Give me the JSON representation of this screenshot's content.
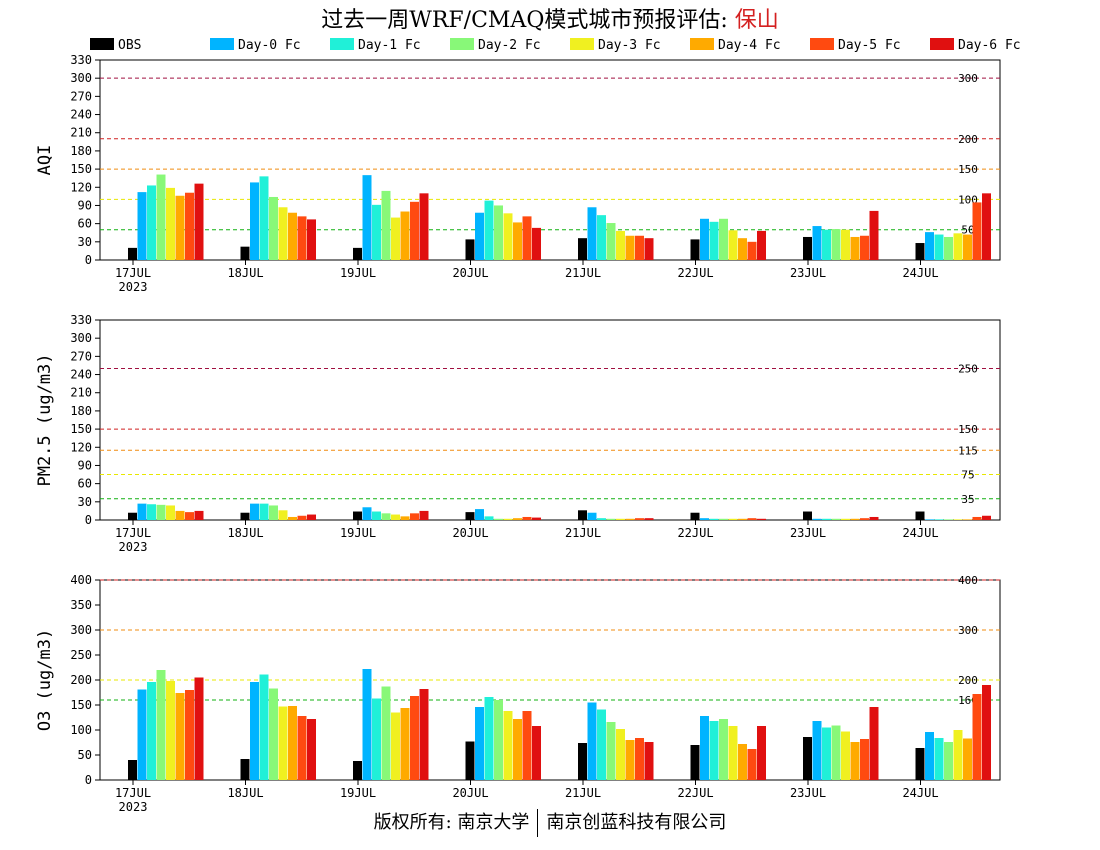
{
  "header": {
    "title_prefix": "过去一周WRF/CMAQ模式城市预报评估: ",
    "city": "保山"
  },
  "footer": {
    "left": "版权所有: 南京大学",
    "right": "南京创蓝科技有限公司"
  },
  "legend": [
    {
      "label": "OBS",
      "color": "#000000"
    },
    {
      "label": "Day-0 Fc",
      "color": "#00b4ff"
    },
    {
      "label": "Day-1 Fc",
      "color": "#20f0d8"
    },
    {
      "label": "Day-2 Fc",
      "color": "#88f878"
    },
    {
      "label": "Day-3 Fc",
      "color": "#f0f020"
    },
    {
      "label": "Day-4 Fc",
      "color": "#ffaa00"
    },
    {
      "label": "Day-5 Fc",
      "color": "#ff4a10"
    },
    {
      "label": "Day-6 Fc",
      "color": "#e01010"
    }
  ],
  "chart_data": [
    {
      "type": "bar",
      "ylabel": "AQI",
      "ylim": [
        0,
        330
      ],
      "yticks": [
        0,
        30,
        60,
        90,
        120,
        150,
        180,
        210,
        240,
        270,
        300,
        330
      ],
      "categories": [
        "17JUL",
        "18JUL",
        "19JUL",
        "20JUL",
        "21JUL",
        "22JUL",
        "23JUL",
        "24JUL"
      ],
      "year_label": "2023",
      "thresholds": [
        {
          "value": 50,
          "label": "50",
          "color": "#10b010"
        },
        {
          "value": 100,
          "label": "100",
          "color": "#e8e800"
        },
        {
          "value": 150,
          "label": "150",
          "color": "#f08c10"
        },
        {
          "value": 200,
          "label": "200",
          "color": "#d02020"
        },
        {
          "value": 300,
          "label": "300",
          "color": "#a01040"
        }
      ],
      "series": [
        {
          "name": "OBS",
          "values": [
            20,
            22,
            20,
            34,
            36,
            34,
            38,
            28
          ]
        },
        {
          "name": "Day-0 Fc",
          "values": [
            112,
            128,
            140,
            78,
            87,
            68,
            56,
            46
          ]
        },
        {
          "name": "Day-1 Fc",
          "values": [
            123,
            138,
            91,
            98,
            74,
            63,
            50,
            42
          ]
        },
        {
          "name": "Day-2 Fc",
          "values": [
            141,
            104,
            114,
            90,
            61,
            68,
            51,
            38
          ]
        },
        {
          "name": "Day-3 Fc",
          "values": [
            119,
            87,
            70,
            77,
            48,
            49,
            50,
            44
          ]
        },
        {
          "name": "Day-4 Fc",
          "values": [
            106,
            78,
            80,
            62,
            40,
            36,
            38,
            42
          ]
        },
        {
          "name": "Day-5 Fc",
          "values": [
            111,
            72,
            96,
            72,
            40,
            30,
            40,
            95
          ]
        },
        {
          "name": "Day-6 Fc",
          "values": [
            126,
            67,
            110,
            53,
            36,
            48,
            81,
            110
          ]
        }
      ]
    },
    {
      "type": "bar",
      "ylabel": "PM2.5 (ug/m3)",
      "ylim": [
        0,
        330
      ],
      "yticks": [
        0,
        30,
        60,
        90,
        120,
        150,
        180,
        210,
        240,
        270,
        300,
        330
      ],
      "categories": [
        "17JUL",
        "18JUL",
        "19JUL",
        "20JUL",
        "21JUL",
        "22JUL",
        "23JUL",
        "24JUL"
      ],
      "year_label": "2023",
      "thresholds": [
        {
          "value": 35,
          "label": "35",
          "color": "#10b010"
        },
        {
          "value": 75,
          "label": "75",
          "color": "#e8e800"
        },
        {
          "value": 115,
          "label": "115",
          "color": "#f08c10"
        },
        {
          "value": 150,
          "label": "150",
          "color": "#d02020"
        },
        {
          "value": 250,
          "label": "250",
          "color": "#a01040"
        }
      ],
      "series": [
        {
          "name": "OBS",
          "values": [
            12,
            12,
            14,
            13,
            16,
            12,
            14,
            14
          ]
        },
        {
          "name": "Day-0 Fc",
          "values": [
            27,
            27,
            21,
            18,
            12,
            3,
            2,
            1
          ]
        },
        {
          "name": "Day-1 Fc",
          "values": [
            26,
            27,
            14,
            6,
            3,
            2,
            2,
            1
          ]
        },
        {
          "name": "Day-2 Fc",
          "values": [
            25,
            24,
            11,
            2,
            2,
            2,
            2,
            1
          ]
        },
        {
          "name": "Day-3 Fc",
          "values": [
            24,
            16,
            9,
            2,
            2,
            2,
            2,
            1
          ]
        },
        {
          "name": "Day-4 Fc",
          "values": [
            15,
            5,
            6,
            3,
            2,
            2,
            2,
            1
          ]
        },
        {
          "name": "Day-5 Fc",
          "values": [
            13,
            7,
            11,
            5,
            3,
            3,
            3,
            5
          ]
        },
        {
          "name": "Day-6 Fc",
          "values": [
            15,
            9,
            15,
            4,
            3,
            2,
            5,
            7
          ]
        }
      ]
    },
    {
      "type": "bar",
      "ylabel": "O3 (ug/m3)",
      "ylim": [
        0,
        400
      ],
      "yticks": [
        0,
        50,
        100,
        150,
        200,
        250,
        300,
        350,
        400
      ],
      "categories": [
        "17JUL",
        "18JUL",
        "19JUL",
        "20JUL",
        "21JUL",
        "22JUL",
        "23JUL",
        "24JUL"
      ],
      "year_label": "2023",
      "thresholds": [
        {
          "value": 160,
          "label": "160",
          "color": "#10b010"
        },
        {
          "value": 200,
          "label": "200",
          "color": "#e8e800"
        },
        {
          "value": 300,
          "label": "300",
          "color": "#f08c10"
        },
        {
          "value": 400,
          "label": "400",
          "color": "#d02020"
        }
      ],
      "series": [
        {
          "name": "OBS",
          "values": [
            40,
            42,
            38,
            77,
            74,
            70,
            86,
            64
          ]
        },
        {
          "name": "Day-0 Fc",
          "values": [
            181,
            196,
            222,
            146,
            155,
            128,
            118,
            96
          ]
        },
        {
          "name": "Day-1 Fc",
          "values": [
            196,
            211,
            163,
            166,
            141,
            118,
            105,
            84
          ]
        },
        {
          "name": "Day-2 Fc",
          "values": [
            220,
            183,
            187,
            160,
            116,
            122,
            109,
            76
          ]
        },
        {
          "name": "Day-3 Fc",
          "values": [
            198,
            147,
            135,
            138,
            102,
            108,
            97,
            100
          ]
        },
        {
          "name": "Day-4 Fc",
          "values": [
            174,
            148,
            144,
            122,
            80,
            72,
            76,
            83
          ]
        },
        {
          "name": "Day-5 Fc",
          "values": [
            180,
            128,
            168,
            138,
            84,
            62,
            82,
            172
          ]
        },
        {
          "name": "Day-6 Fc",
          "values": [
            205,
            122,
            182,
            108,
            76,
            108,
            146,
            190
          ]
        }
      ]
    }
  ]
}
